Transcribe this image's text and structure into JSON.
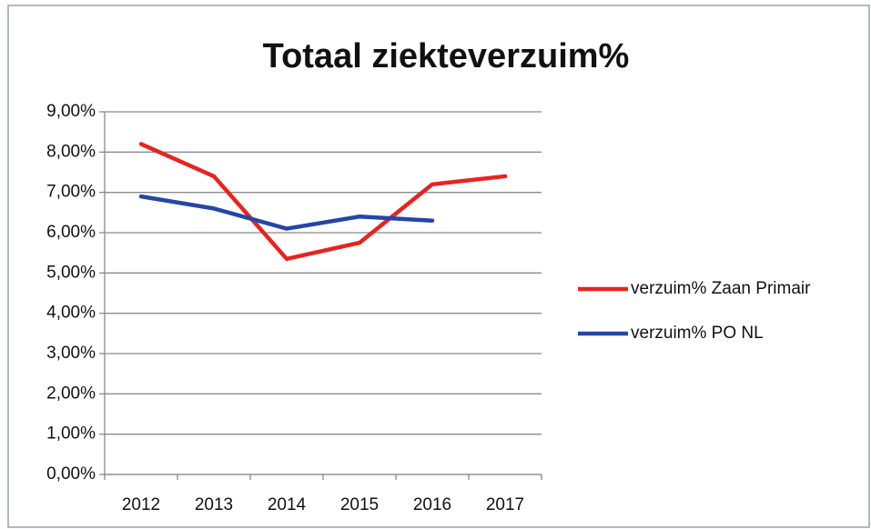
{
  "chart_data": {
    "type": "line",
    "title": "Totaal ziekteverzuim%",
    "categories": [
      "2012",
      "2013",
      "2014",
      "2015",
      "2016",
      "2017"
    ],
    "series": [
      {
        "name": "verzuim% Zaan Primair",
        "color": "#e8231f",
        "values": [
          8.2,
          7.4,
          5.35,
          5.75,
          7.2,
          7.4
        ]
      },
      {
        "name": "verzuim% PO NL",
        "color": "#2546a8",
        "values": [
          6.9,
          6.6,
          6.1,
          6.4,
          6.3,
          null
        ]
      }
    ],
    "ylim": [
      0,
      9
    ],
    "yticks": [
      {
        "value": 0,
        "label": "0,00%"
      },
      {
        "value": 1,
        "label": "1,00%"
      },
      {
        "value": 2,
        "label": "2,00%"
      },
      {
        "value": 3,
        "label": "3,00%"
      },
      {
        "value": 4,
        "label": "4,00%"
      },
      {
        "value": 5,
        "label": "5,00%"
      },
      {
        "value": 6,
        "label": "6,00%"
      },
      {
        "value": 7,
        "label": "7,00%"
      },
      {
        "value": 8,
        "label": "8,00%"
      },
      {
        "value": 9,
        "label": "9,00%"
      }
    ],
    "grid": true,
    "legend": "right"
  }
}
